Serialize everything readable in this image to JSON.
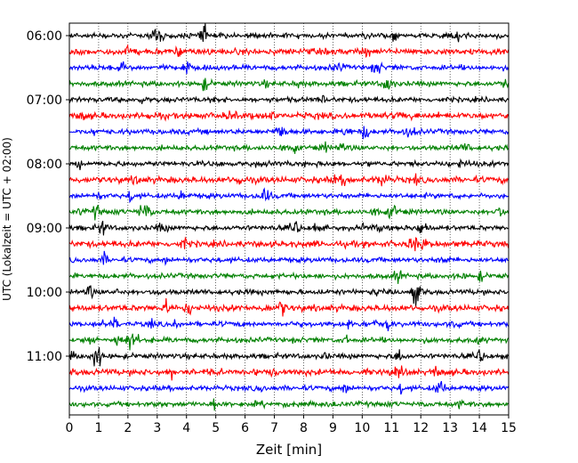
{
  "chart_data": {
    "type": "line",
    "title": "",
    "xlabel": "Zeit  [min]",
    "ylabel": "UTC (Lokalzeit = UTC + 02:00)",
    "xlim": [
      0,
      15
    ],
    "x_ticks": [
      0,
      1,
      2,
      3,
      4,
      5,
      6,
      7,
      8,
      9,
      10,
      11,
      12,
      13,
      14,
      15
    ],
    "x_tick_labels": [
      "0",
      "1",
      "2",
      "3",
      "4",
      "5",
      "6",
      "7",
      "8",
      "9",
      "10",
      "11",
      "12",
      "13",
      "14",
      "15"
    ],
    "y_tick_labels": [
      "06:00",
      "07:00",
      "08:00",
      "09:00",
      "10:00",
      "11:00"
    ],
    "grid": "vertical dotted",
    "trace_interval_min": 15,
    "color_cycle": [
      "#000000",
      "#ff0000",
      "#0000ff",
      "#008000"
    ],
    "traces": [
      {
        "start": "06:00"
      },
      {
        "start": "06:15"
      },
      {
        "start": "06:30"
      },
      {
        "start": "06:45"
      },
      {
        "start": "07:00"
      },
      {
        "start": "07:15"
      },
      {
        "start": "07:30"
      },
      {
        "start": "07:45"
      },
      {
        "start": "08:00"
      },
      {
        "start": "08:15"
      },
      {
        "start": "08:30"
      },
      {
        "start": "08:45"
      },
      {
        "start": "09:00"
      },
      {
        "start": "09:15"
      },
      {
        "start": "09:30"
      },
      {
        "start": "09:45"
      },
      {
        "start": "10:00"
      },
      {
        "start": "10:15"
      },
      {
        "start": "10:30"
      },
      {
        "start": "10:45"
      },
      {
        "start": "11:00"
      },
      {
        "start": "11:15"
      },
      {
        "start": "11:30"
      },
      {
        "start": "11:45"
      }
    ]
  }
}
